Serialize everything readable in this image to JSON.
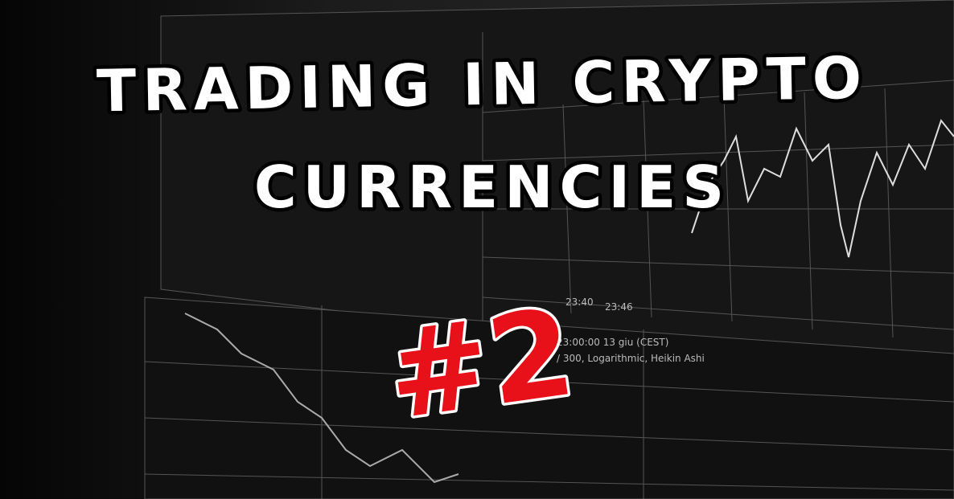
{
  "header": {
    "title_lines": [
      "TRADING IN CRYPTO",
      "CURRENCIES"
    ],
    "badge": "#2"
  },
  "screen_labels": [
    "23:40",
    "23:46",
    "23:00:00  13 giu (CEST)",
    "/ 300, Logarithmic, Heikin Ashi"
  ]
}
